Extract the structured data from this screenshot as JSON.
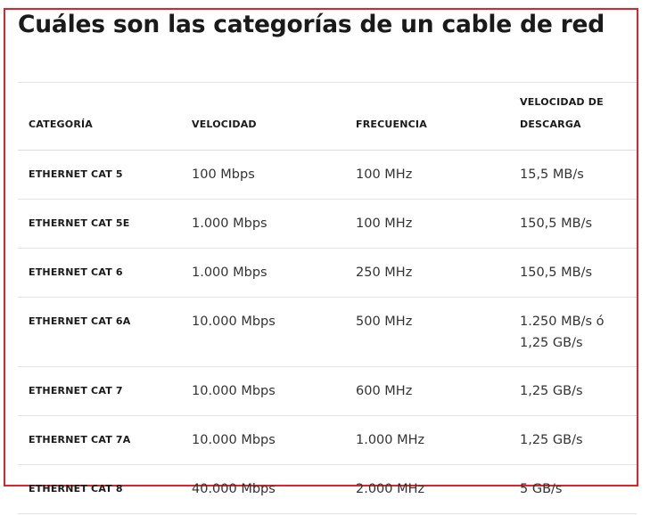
{
  "title": "Cuáles son las categorías de un cable de red",
  "table": {
    "headers": {
      "categoria": "CATEGORÍA",
      "velocidad": "VELOCIDAD",
      "frecuencia": "FRECUENCIA",
      "descarga_line1": "VELOCIDAD DE",
      "descarga_line2": "DESCARGA"
    },
    "rows": [
      {
        "categoria": "ETHERNET CAT 5",
        "velocidad": "100 Mbps",
        "frecuencia": "100 MHz",
        "descarga": "15,5 MB/s"
      },
      {
        "categoria": "ETHERNET CAT 5E",
        "velocidad": "1.000 Mbps",
        "frecuencia": "100 MHz",
        "descarga": "150,5 MB/s"
      },
      {
        "categoria": "ETHERNET CAT 6",
        "velocidad": "1.000 Mbps",
        "frecuencia": "250 MHz",
        "descarga": "150,5 MB/s"
      },
      {
        "categoria": "ETHERNET CAT 6A",
        "velocidad": "10.000 Mbps",
        "frecuencia": "500 MHz",
        "descarga": "1.250 MB/s ó 1,25 GB/s"
      },
      {
        "categoria": "ETHERNET CAT 7",
        "velocidad": "10.000 Mbps",
        "frecuencia": "600 MHz",
        "descarga": "1,25 GB/s"
      },
      {
        "categoria": "ETHERNET CAT 7A",
        "velocidad": "10.000 Mbps",
        "frecuencia": "1.000 MHz",
        "descarga": "1,25 GB/s"
      },
      {
        "categoria": "ETHERNET CAT 8",
        "velocidad": "40.000 Mbps",
        "frecuencia": "2.000 MHz",
        "descarga": "5 GB/s"
      }
    ]
  },
  "colors": {
    "highlight_border": "#d9252b"
  }
}
